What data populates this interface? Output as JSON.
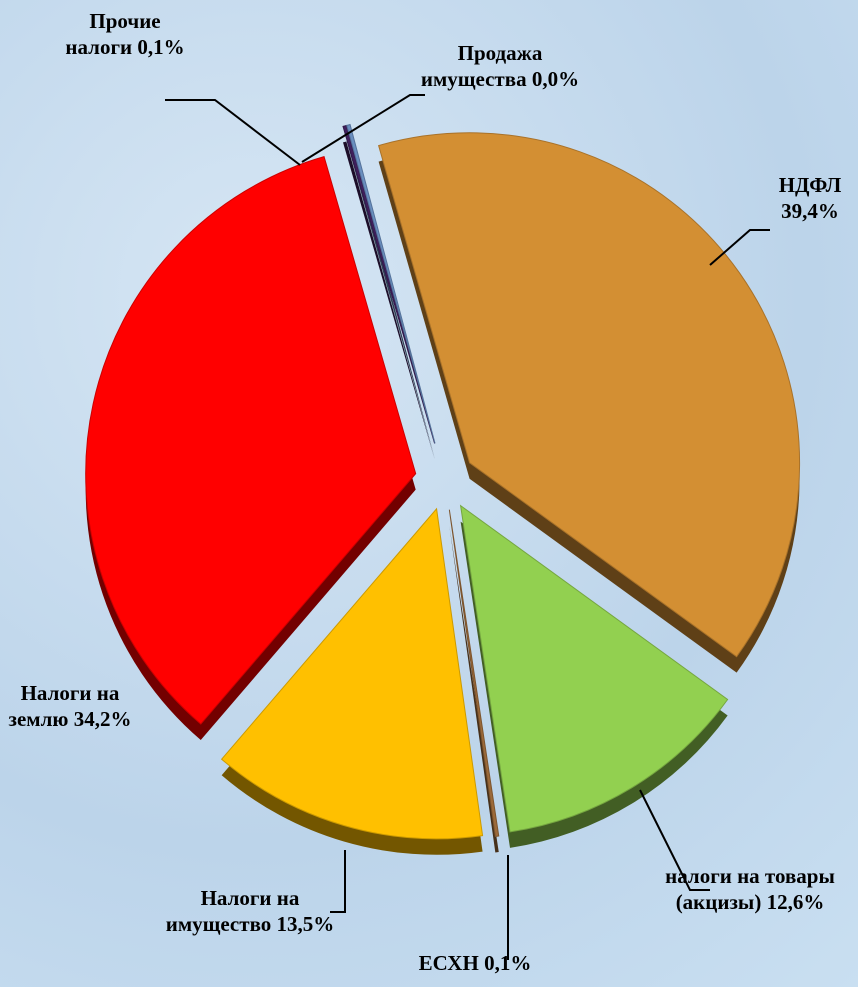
{
  "chart_data": {
    "type": "pie",
    "categories": [
      "НДФЛ",
      "налоги на товары (акцизы)",
      "ЕСХН",
      "Налоги на имущество",
      "Налоги на землю",
      "Прочие налоги",
      "Продажа имущества"
    ],
    "values": [
      39.4,
      12.6,
      0.1,
      13.5,
      34.2,
      0.1,
      0.0
    ],
    "value_labels": [
      "39,4%",
      "12,6%",
      "0,1%",
      "13,5%",
      "34,2%",
      "0,1%",
      "0,0%"
    ],
    "colors": [
      "#d38f33",
      "#92d050",
      "#9c6a3a",
      "#ffc000",
      "#ff0000",
      "#3f1f5c",
      "#6a8fc0"
    ]
  }
}
